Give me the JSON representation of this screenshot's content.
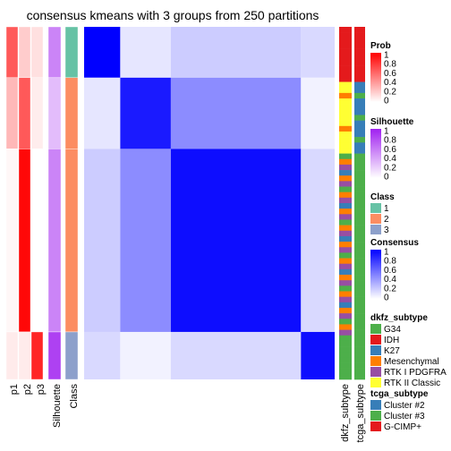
{
  "chart_data": {
    "type": "heatmap",
    "title": "consensus kmeans with 3 groups from 250 partitions",
    "column_labels": [
      "p1",
      "p2",
      "p3",
      "Silhouette",
      "Class"
    ],
    "row_group_sizes": [
      15,
      21,
      54,
      14
    ],
    "annotation_tracks": {
      "p1": [
        0.65,
        0.28,
        0.03,
        0.08
      ],
      "p2": [
        0.2,
        0.65,
        0.97,
        0.08
      ],
      "p3": [
        0.12,
        0.07,
        0.0,
        0.85
      ],
      "silhouette": [
        0.55,
        0.3,
        0.55,
        0.85
      ],
      "class": [
        1,
        2,
        2,
        3
      ]
    },
    "consensus_blocks": [
      [
        1.0,
        0.1,
        0.2,
        0.15
      ],
      [
        0.1,
        0.9,
        0.45,
        0.05
      ],
      [
        0.2,
        0.45,
        0.95,
        0.15
      ],
      [
        0.15,
        0.05,
        0.15,
        0.95
      ]
    ],
    "dkfz_subtype_column_label": "dkfz_subtype",
    "tcga_subtype_column_label": "tcga_subtype",
    "legends": {
      "prob": {
        "title": "Prob",
        "ticks": [
          "1",
          "0.8",
          "0.6",
          "0.4",
          "0.2",
          "0"
        ]
      },
      "silhouette": {
        "title": "Silhouette",
        "ticks": [
          "1",
          "0.8",
          "0.6",
          "0.4",
          "0.2",
          "0"
        ]
      },
      "class": {
        "title": "Class",
        "labels": [
          "1",
          "2",
          "3"
        ],
        "colors": [
          "#66C2A5",
          "#FC8D62",
          "#8DA0CB"
        ]
      },
      "consensus": {
        "title": "Consensus",
        "ticks": [
          "1",
          "0.8",
          "0.6",
          "0.4",
          "0.2",
          "0"
        ]
      },
      "dkfz_subtype": {
        "title": "dkfz_subtype",
        "labels": [
          "G34",
          "IDH",
          "K27",
          "Mesenchymal",
          "RTK I PDGFRA",
          "RTK II Classic"
        ],
        "colors": [
          "#4DAF4A",
          "#E41A1C",
          "#377EB8",
          "#FF7F00",
          "#984EA3",
          "#FFFF33"
        ]
      },
      "tcga_subtype": {
        "title": "tcga_subtype",
        "labels": [
          "Cluster #2",
          "Cluster #3",
          "G-CIMP+"
        ],
        "colors": [
          "#377EB8",
          "#4DAF4A",
          "#E41A1C"
        ]
      }
    },
    "colors": {
      "prob": "#FF0000",
      "silhouette": "#A020F0",
      "consensus": "#0000FF"
    }
  }
}
